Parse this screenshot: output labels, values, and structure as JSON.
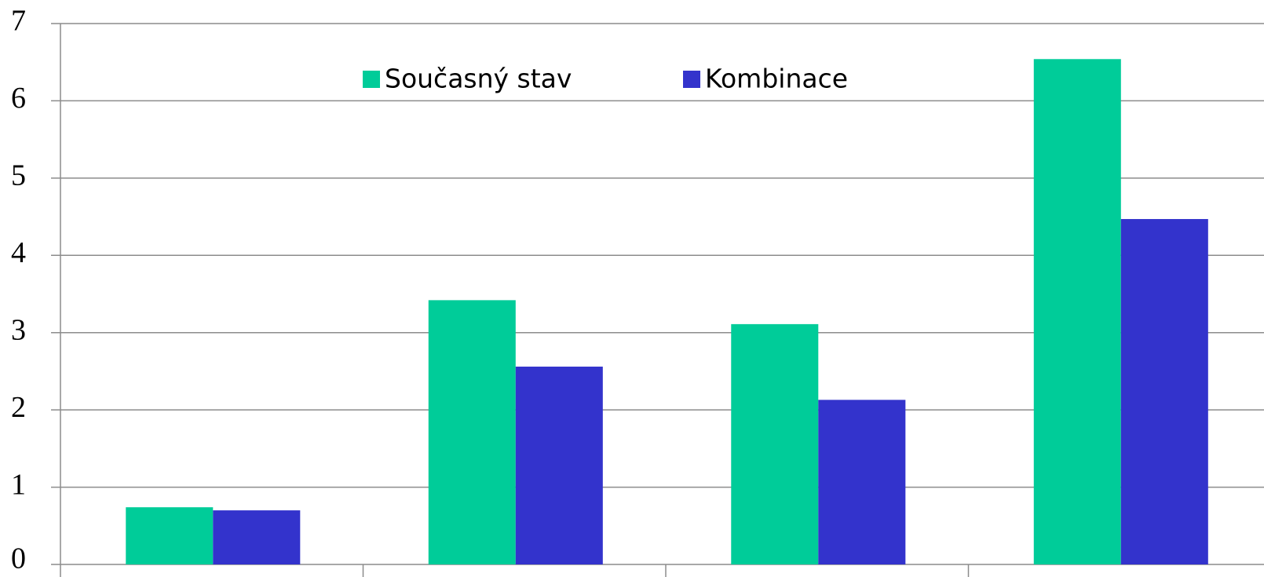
{
  "chart_data": {
    "type": "bar",
    "categories": [
      null,
      null,
      null,
      null
    ],
    "series": [
      {
        "name": "Současný stav",
        "color": "#00cc99",
        "values": [
          0.74,
          3.42,
          3.11,
          6.54
        ]
      },
      {
        "name": "Kombinace",
        "color": "#3333cc",
        "values": [
          0.7,
          2.56,
          2.13,
          4.47
        ]
      }
    ],
    "ylim": [
      0,
      7
    ],
    "yticks": [
      0,
      1,
      2,
      3,
      4,
      5,
      6,
      7
    ],
    "grid": true,
    "legend": "top"
  }
}
